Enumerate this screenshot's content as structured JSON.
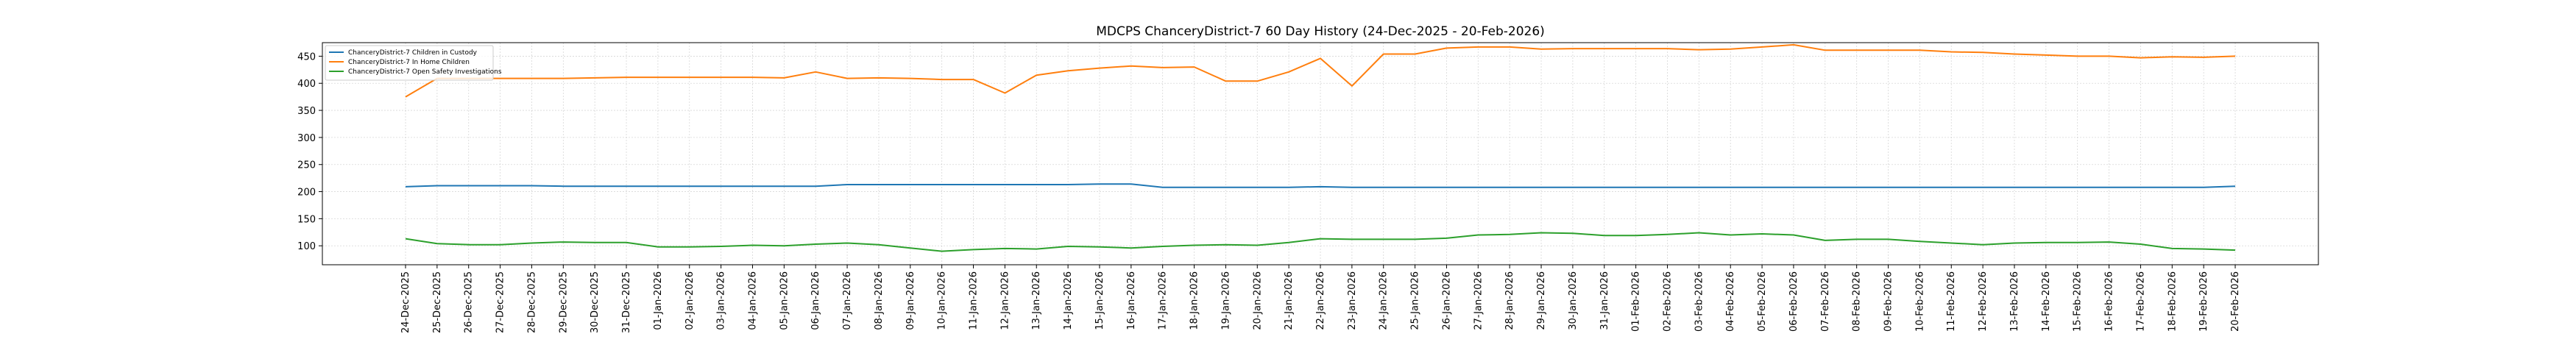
{
  "chart_data": {
    "type": "line",
    "title": "MDCPS ChanceryDistrict-7 60 Day History (24-Dec-2025 - 20-Feb-2026)",
    "xlabel": "",
    "ylabel": "",
    "ylim": [
      65,
      475
    ],
    "yticks": [
      100,
      150,
      200,
      250,
      300,
      350,
      400,
      450
    ],
    "grid": true,
    "legend_position": "top-left",
    "categories": [
      "24-Dec-2025",
      "25-Dec-2025",
      "26-Dec-2025",
      "27-Dec-2025",
      "28-Dec-2025",
      "29-Dec-2025",
      "30-Dec-2025",
      "31-Dec-2025",
      "01-Jan-2026",
      "02-Jan-2026",
      "03-Jan-2026",
      "04-Jan-2026",
      "05-Jan-2026",
      "06-Jan-2026",
      "07-Jan-2026",
      "08-Jan-2026",
      "09-Jan-2026",
      "10-Jan-2026",
      "11-Jan-2026",
      "12-Jan-2026",
      "13-Jan-2026",
      "14-Jan-2026",
      "15-Jan-2026",
      "16-Jan-2026",
      "17-Jan-2026",
      "18-Jan-2026",
      "19-Jan-2026",
      "20-Jan-2026",
      "21-Jan-2026",
      "22-Jan-2026",
      "23-Jan-2026",
      "24-Jan-2026",
      "25-Jan-2026",
      "26-Jan-2026",
      "27-Jan-2026",
      "28-Jan-2026",
      "29-Jan-2026",
      "30-Jan-2026",
      "31-Jan-2026",
      "01-Feb-2026",
      "02-Feb-2026",
      "03-Feb-2026",
      "04-Feb-2026",
      "05-Feb-2026",
      "06-Feb-2026",
      "07-Feb-2026",
      "08-Feb-2026",
      "09-Feb-2026",
      "10-Feb-2026",
      "11-Feb-2026",
      "12-Feb-2026",
      "13-Feb-2026",
      "14-Feb-2026",
      "15-Feb-2026",
      "16-Feb-2026",
      "17-Feb-2026",
      "18-Feb-2026",
      "19-Feb-2026",
      "20-Feb-2026"
    ],
    "series": [
      {
        "name": "ChanceryDistrict-7 Children in Custody",
        "color": "#1f77b4",
        "values": [
          209,
          211,
          211,
          211,
          211,
          210,
          210,
          210,
          210,
          210,
          210,
          210,
          210,
          210,
          213,
          213,
          213,
          213,
          213,
          213,
          213,
          213,
          214,
          214,
          208,
          208,
          208,
          208,
          208,
          209,
          208,
          208,
          208,
          208,
          208,
          208,
          208,
          208,
          208,
          208,
          208,
          208,
          208,
          208,
          208,
          208,
          208,
          208,
          208,
          208,
          208,
          208,
          208,
          208,
          208,
          208,
          208,
          208,
          210
        ]
      },
      {
        "name": "ChanceryDistrict-7 In Home Children",
        "color": "#ff7f0e",
        "values": [
          375,
          409,
          409,
          409,
          409,
          409,
          410,
          411,
          411,
          411,
          411,
          411,
          410,
          421,
          409,
          410,
          409,
          407,
          407,
          382,
          415,
          423,
          428,
          432,
          429,
          430,
          404,
          404,
          421,
          446,
          395,
          454,
          454,
          465,
          467,
          467,
          463,
          464,
          464,
          464,
          464,
          462,
          463,
          467,
          471,
          461,
          461,
          461,
          461,
          458,
          457,
          454,
          452,
          450,
          450,
          447,
          449,
          448,
          450
        ]
      },
      {
        "name": "ChanceryDistrict-7 Open Safety Investigations",
        "color": "#2ca02c",
        "values": [
          113,
          104,
          102,
          102,
          105,
          107,
          106,
          106,
          98,
          98,
          99,
          101,
          100,
          103,
          105,
          102,
          96,
          90,
          93,
          95,
          94,
          99,
          98,
          96,
          99,
          101,
          102,
          101,
          106,
          113,
          112,
          112,
          112,
          114,
          120,
          121,
          124,
          123,
          119,
          119,
          121,
          124,
          120,
          122,
          120,
          110,
          112,
          112,
          108,
          105,
          102,
          105,
          106,
          106,
          107,
          103,
          95,
          94,
          92
        ]
      }
    ]
  }
}
